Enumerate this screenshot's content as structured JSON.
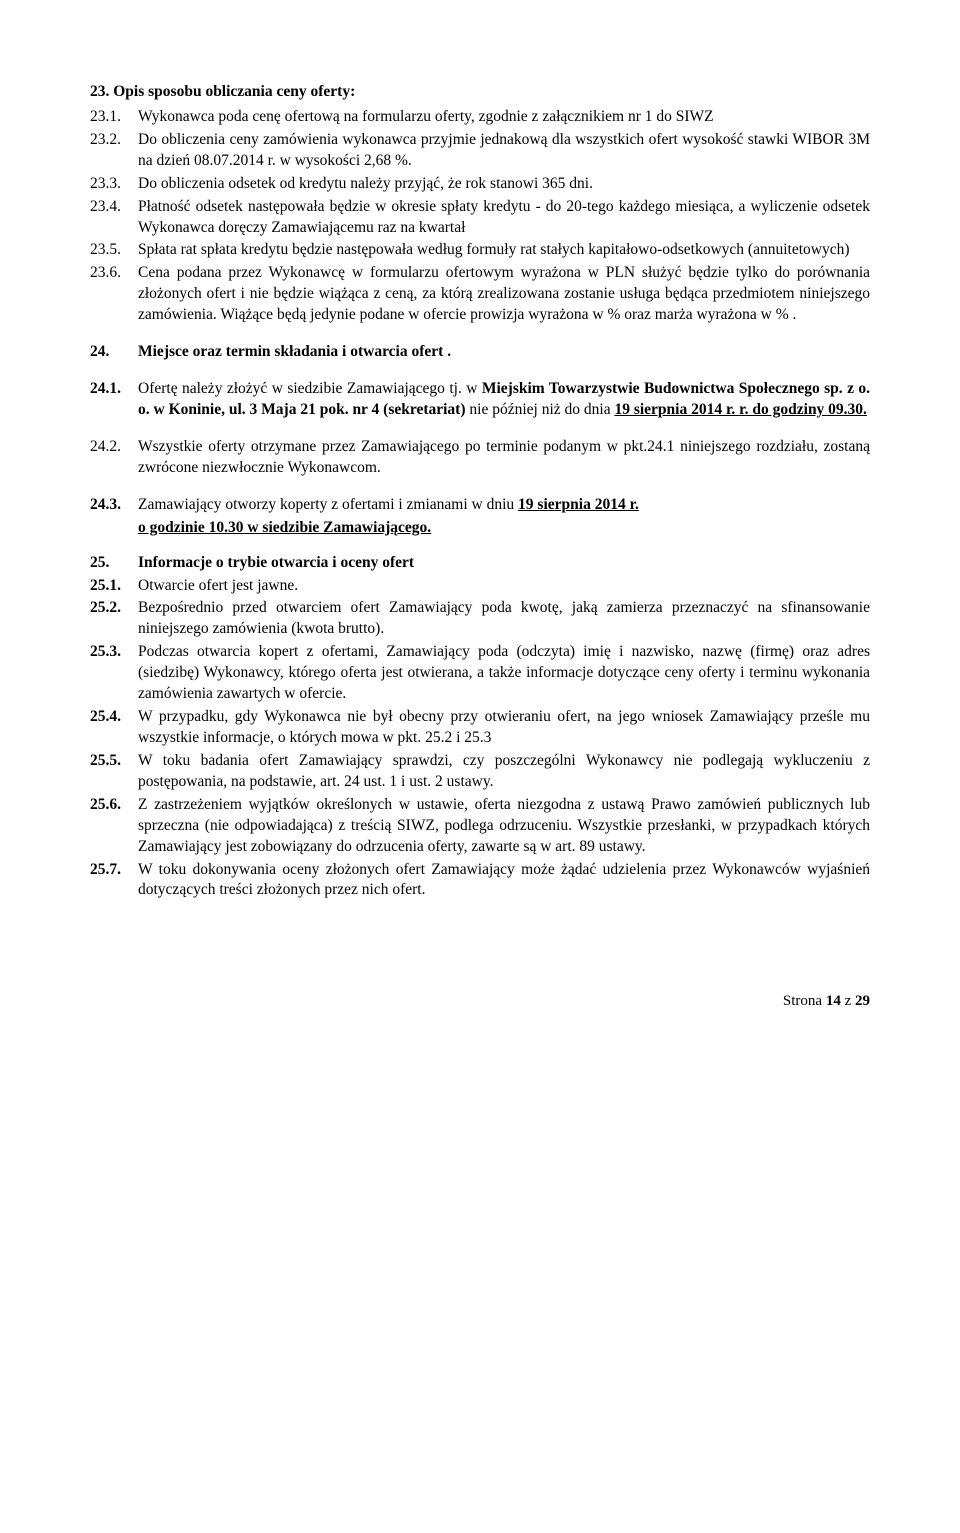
{
  "s23": {
    "heading": "23. Opis sposobu obliczania ceny oferty:",
    "items": [
      {
        "num": "23.1.",
        "text": "Wykonawca poda cenę ofertową na formularzu oferty, zgodnie z załącznikiem nr 1 do SIWZ"
      },
      {
        "num": "23.2.",
        "text": "Do obliczenia ceny zamówienia wykonawca przyjmie jednakową dla wszystkich ofert wysokość stawki WIBOR 3M na dzień 08.07.2014 r. w wysokości 2,68 %."
      },
      {
        "num": "23.3.",
        "text": "Do obliczenia odsetek od kredytu należy przyjąć, że rok stanowi 365 dni."
      },
      {
        "num": "23.4.",
        "text": "Płatność odsetek następowała będzie w okresie spłaty kredytu - do 20-tego każdego miesiąca, a wyliczenie odsetek Wykonawca doręczy Zamawiającemu raz na kwartał"
      },
      {
        "num": "23.5.",
        "text": "Spłata rat spłata kredytu będzie następowała według formuły rat stałych kapitałowo-odsetkowych (annuitetowych)"
      },
      {
        "num": "23.6.",
        "text": "Cena podana przez Wykonawcę w formularzu ofertowym wyrażona w PLN służyć będzie tylko do porównania złożonych ofert i nie będzie wiążąca z ceną, za którą zrealizowana zostanie usługa będąca przedmiotem niniejszego zamówienia. Wiążące będą jedynie podane w ofercie prowizja wyrażona w % oraz marża wyrażona w % ."
      }
    ]
  },
  "s24": {
    "heading_num": "24.",
    "heading_text": "Miejsce oraz termin składania i otwarcia ofert .",
    "c1": {
      "num": "24.1.",
      "p1": "Ofertę należy złożyć w siedzibie Zamawiającego tj. w ",
      "p2_bold": "Miejskim  Towarzystwie Budownictwa Społecznego sp. z o. o. w Koninie, ul. 3 Maja 21 pok. nr 4 (sekretariat)",
      "p3": " nie później niż do dnia  ",
      "p4_u": "19 sierpnia  2014 r.  r. do godziny 09.30."
    },
    "c2": {
      "num": "24.2.",
      "text": "Wszystkie oferty otrzymane przez Zamawiającego po terminie podanym w pkt.24.1 niniejszego rozdziału, zostaną zwrócone niezwłocznie Wykonawcom."
    },
    "c3": {
      "num": "24.3.",
      "p1": "Zamawiający otworzy koperty z ofertami i zmianami w dniu ",
      "p2_u": "19 sierpnia 2014 r.",
      "p3_u": "o godzinie 10.30  w siedzibie Zamawiającego."
    }
  },
  "s25": {
    "heading_num": "25.",
    "heading_text": "Informacje o trybie otwarcia i oceny ofert",
    "items": [
      {
        "num": "25.1.",
        "text": "Otwarcie ofert jest jawne."
      },
      {
        "num": "25.2.",
        "text": "Bezpośrednio przed otwarciem ofert Zamawiający poda kwotę, jaką zamierza przeznaczyć na sfinansowanie niniejszego zamówienia (kwota brutto)."
      },
      {
        "num": "25.3.",
        "text": "Podczas otwarcia kopert z ofertami, Zamawiający poda (odczyta) imię i nazwisko, nazwę (firmę) oraz adres (siedzibę) Wykonawcy, którego oferta jest otwierana, a także informacje dotyczące ceny oferty i terminu wykonania zamówienia zawartych w ofercie."
      },
      {
        "num": "25.4.",
        "text": "W przypadku, gdy Wykonawca nie był obecny przy otwieraniu ofert, na jego wniosek Zamawiający prześle mu wszystkie informacje, o których mowa w pkt. 25.2 i 25.3"
      },
      {
        "num": "25.5.",
        "text": "W toku badania ofert Zamawiający sprawdzi, czy poszczególni Wykonawcy nie podlegają wykluczeniu z postępowania, na podstawie, art. 24 ust. 1 i ust. 2 ustawy."
      },
      {
        "num": "25.6.",
        "text": "Z zastrzeżeniem wyjątków określonych w ustawie, oferta niezgodna z ustawą Prawo zamówień publicznych lub sprzeczna (nie odpowiadająca) z treścią SIWZ, podlega odrzuceniu. Wszystkie przesłanki, w przypadkach których Zamawiający jest zobowiązany do odrzucenia oferty, zawarte są w art. 89 ustawy."
      },
      {
        "num": "25.7.",
        "text": "W toku dokonywania oceny złożonych ofert Zamawiający może żądać udzielenia przez Wykonawców wyjaśnień dotyczących treści złożonych przez nich ofert."
      }
    ]
  },
  "footer": {
    "label": "Strona ",
    "page": "14",
    "of_label": " z ",
    "total": "29"
  }
}
